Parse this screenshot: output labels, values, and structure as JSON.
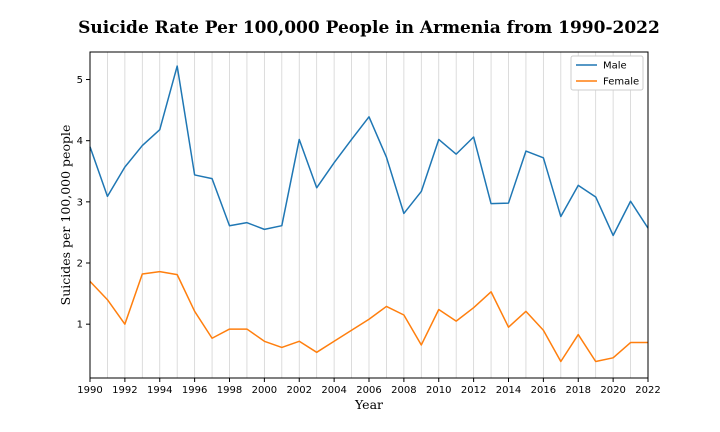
{
  "chart_data": {
    "type": "line",
    "title": "Suicide Rate Per 100,000 People in Armenia from 1990-2022",
    "xlabel": "Year",
    "ylabel": "Suicides per 100,000 people",
    "xlim": [
      1990,
      2022
    ],
    "ylim": [
      0.12,
      5.45
    ],
    "x_ticks": [
      1990,
      1992,
      1994,
      1996,
      1998,
      2000,
      2002,
      2004,
      2006,
      2008,
      2010,
      2012,
      2014,
      2016,
      2018,
      2020,
      2022
    ],
    "y_ticks": [
      1,
      2,
      3,
      4,
      5
    ],
    "grid": "vertical",
    "legend_position": "top-right",
    "x": [
      1990,
      1991,
      1992,
      1993,
      1994,
      1995,
      1996,
      1997,
      1998,
      1999,
      2000,
      2001,
      2002,
      2003,
      2004,
      2005,
      2006,
      2007,
      2008,
      2009,
      2010,
      2011,
      2012,
      2013,
      2014,
      2015,
      2016,
      2017,
      2018,
      2019,
      2020,
      2021,
      2022
    ],
    "series": [
      {
        "name": "Male",
        "color": "#1f77b4",
        "values": [
          3.9,
          3.09,
          3.57,
          3.92,
          4.18,
          5.22,
          3.44,
          3.38,
          2.61,
          2.66,
          2.55,
          2.61,
          4.02,
          3.23,
          3.64,
          4.02,
          4.39,
          3.73,
          2.81,
          3.17,
          4.02,
          3.78,
          4.06,
          2.97,
          2.98,
          3.83,
          3.72,
          2.76,
          3.27,
          3.08,
          2.45,
          3.01,
          2.57
        ]
      },
      {
        "name": "Female",
        "color": "#ff7f0e",
        "values": [
          1.7,
          1.4,
          1.0,
          1.82,
          1.86,
          1.81,
          1.21,
          0.77,
          0.92,
          0.92,
          0.72,
          0.62,
          0.72,
          0.54,
          0.72,
          0.9,
          1.08,
          1.29,
          1.15,
          0.66,
          1.24,
          1.05,
          1.27,
          1.53,
          0.95,
          1.21,
          0.9,
          0.39,
          0.83,
          0.39,
          0.45,
          0.7,
          0.7
        ]
      }
    ]
  }
}
